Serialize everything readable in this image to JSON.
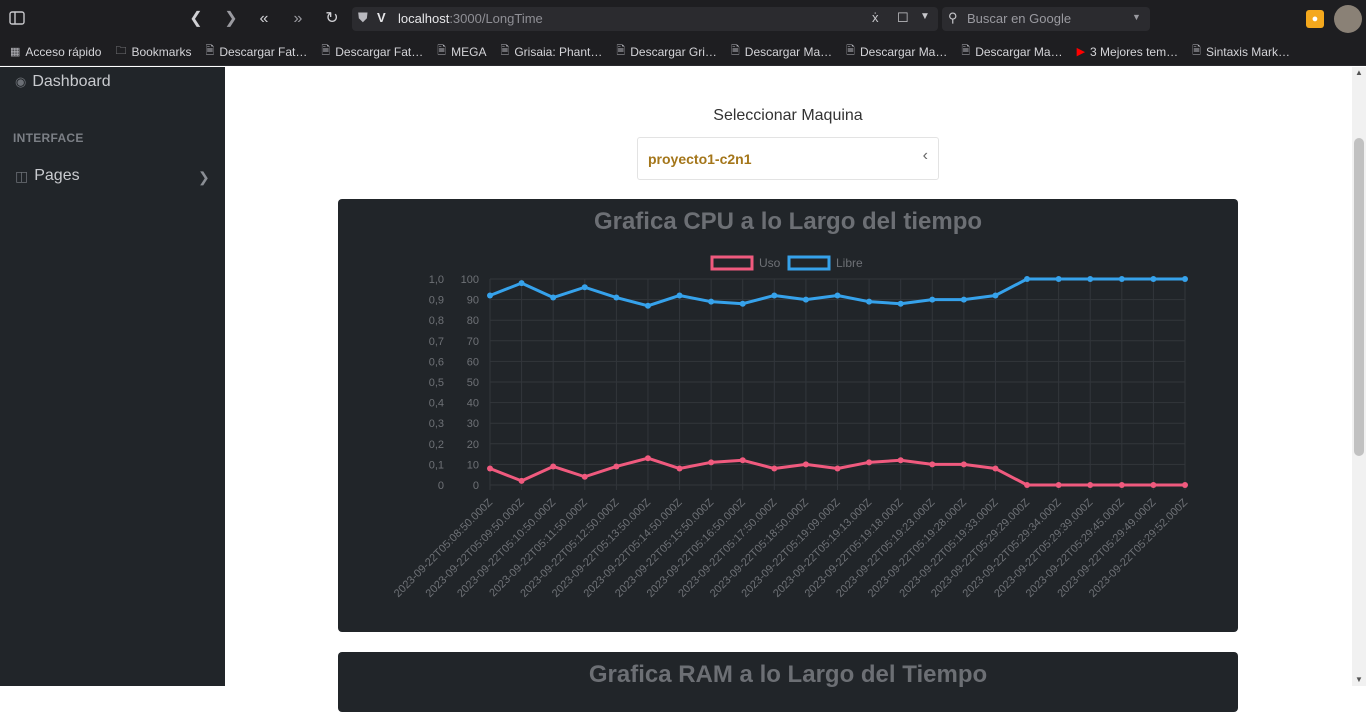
{
  "browser": {
    "url_host": "localhost",
    "url_path": ":3000/LongTime",
    "search_placeholder": "Buscar en Google",
    "bookmarks": [
      "Acceso rápido",
      "Bookmarks",
      "Descargar Fat…",
      "Descargar Fat…",
      "MEGA",
      "Grisaia: Phant…",
      "Descargar Gri…",
      "Descargar Ma…",
      "Descargar Ma…",
      "Descargar Ma…",
      "3 Mejores tem…",
      "Sintaxis Mark…"
    ]
  },
  "sidebar": {
    "dashboard_label": "Dashboard",
    "heading": "INTERFACE",
    "pages_label": "Pages"
  },
  "selector": {
    "title": "Seleccionar Maquina",
    "value": "proyecto1-c2n1"
  },
  "colors": {
    "uso": "#f05a7e",
    "libre": "#36a2eb",
    "card_bg": "#212529",
    "select_value": "#a4761a"
  },
  "chart_data": {
    "type": "line",
    "title": "Grafica CPU a lo Largo del tiempo",
    "legend_position": "top",
    "grid": true,
    "x": [
      "2023-09-22T05:08:50.000Z",
      "2023-09-22T05:09:50.000Z",
      "2023-09-22T05:10:50.000Z",
      "2023-09-22T05:11:50.000Z",
      "2023-09-22T05:12:50.000Z",
      "2023-09-22T05:13:50.000Z",
      "2023-09-22T05:14:50.000Z",
      "2023-09-22T05:15:50.000Z",
      "2023-09-22T05:16:50.000Z",
      "2023-09-22T05:17:50.000Z",
      "2023-09-22T05:18:50.000Z",
      "2023-09-22T05:19:09.000Z",
      "2023-09-22T05:19:13.000Z",
      "2023-09-22T05:19:18.000Z",
      "2023-09-22T05:19:23.000Z",
      "2023-09-22T05:19:28.000Z",
      "2023-09-22T05:19:33.000Z",
      "2023-09-22T05:29:29.000Z",
      "2023-09-22T05:29:34.000Z",
      "2023-09-22T05:29:39.000Z",
      "2023-09-22T05:29:45.000Z",
      "2023-09-22T05:29:49.000Z",
      "2023-09-22T05:29:52.000Z"
    ],
    "series": [
      {
        "name": "Uso",
        "values": [
          8,
          2,
          9,
          4,
          9,
          13,
          8,
          11,
          12,
          8,
          10,
          8,
          11,
          12,
          10,
          10,
          8,
          0,
          0,
          0,
          0,
          0,
          0
        ]
      },
      {
        "name": "Libre",
        "values": [
          92,
          98,
          91,
          96,
          91,
          87,
          92,
          89,
          88,
          92,
          90,
          92,
          89,
          88,
          90,
          90,
          92,
          100,
          100,
          100,
          100,
          100,
          100
        ]
      }
    ],
    "y_left_ticks": [
      "1,0",
      "0,9",
      "0,8",
      "0,7",
      "0,6",
      "0,5",
      "0,4",
      "0,3",
      "0,2",
      "0,1",
      "0"
    ],
    "y_right_ticks": [
      "100",
      "90",
      "80",
      "70",
      "60",
      "50",
      "40",
      "30",
      "20",
      "10",
      "0"
    ],
    "ylim": [
      0,
      100
    ]
  },
  "second_card": {
    "title": "Grafica RAM a lo Largo del Tiempo"
  }
}
